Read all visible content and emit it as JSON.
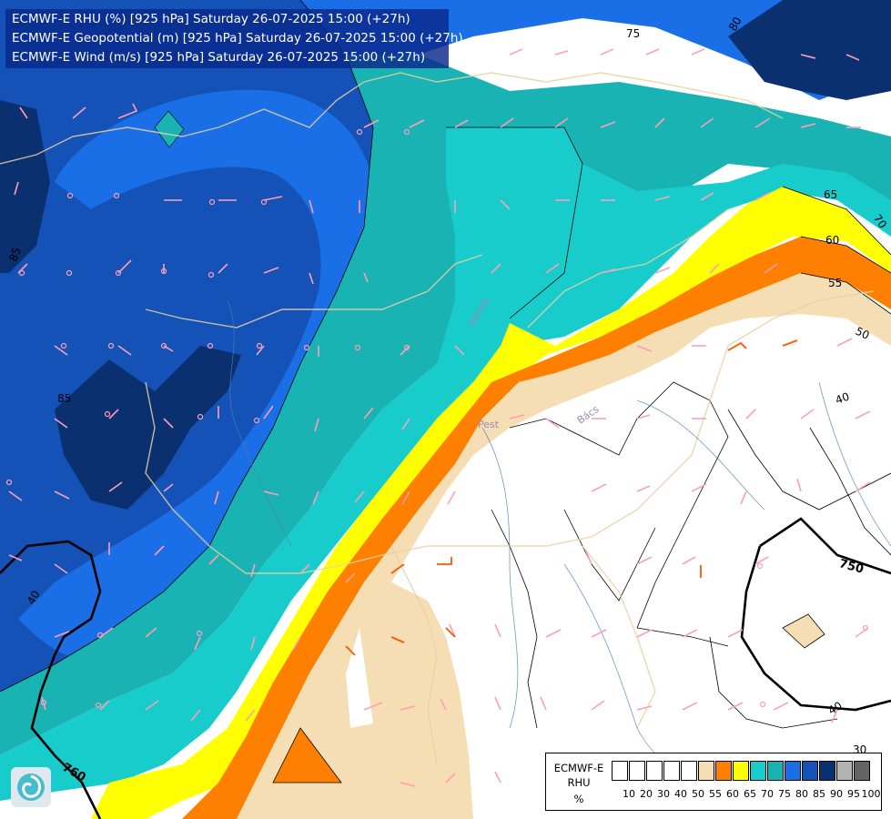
{
  "header": {
    "line1": "ECMWF-E RHU (%) [925 hPa] Saturday 26-07-2025 15:00 (+27h)",
    "line2": "ECMWF-E Geopotential (m) [925 hPa] Saturday 26-07-2025 15:00 (+27h)",
    "line3": "ECMWF-E Wind (m/s) [925 hPa] Saturday 26-07-2025 15:00 (+27h)"
  },
  "legend": {
    "title1": "ECMWF-E",
    "title2": "RHU",
    "unit": "%",
    "colors": [
      "#ffffff",
      "#ffffff",
      "#ffffff",
      "#ffffff",
      "#ffffff",
      "#f5deb3",
      "#ff8000",
      "#ffff00",
      "#19cccc",
      "#19b3b3",
      "#1a6ee6",
      "#1452b8",
      "#0a3070",
      "#b3b3b3",
      "#646464"
    ],
    "ticks": [
      "10",
      "20",
      "30",
      "40",
      "50",
      "55",
      "60",
      "65",
      "70",
      "75",
      "80",
      "85",
      "90",
      "95",
      "100"
    ]
  },
  "map": {
    "rhu_contour_labels": [
      "75",
      "80",
      "65",
      "70",
      "60",
      "55",
      "50",
      "40",
      "40",
      "85",
      "85",
      "40",
      "30"
    ],
    "geopotential_labels": [
      "750",
      "760"
    ],
    "place_labels": [
      "Pest",
      "Bács",
      "Heves"
    ],
    "colors": {
      "rhu_40_50": "#ffffff",
      "rhu_50_55": "#f5deb3",
      "rhu_55_60": "#ff8000",
      "rhu_60_65": "#ffff00",
      "rhu_65_70": "#19cccc",
      "rhu_70_75": "#19b3b3",
      "rhu_75_80": "#1a6ee6",
      "rhu_80_85": "#1452b8",
      "rhu_85_90": "#0a3070",
      "wind_barb": "#ff9eb8",
      "wind_barb_warm": "#ff5500",
      "border": "#e8d2a0"
    }
  }
}
